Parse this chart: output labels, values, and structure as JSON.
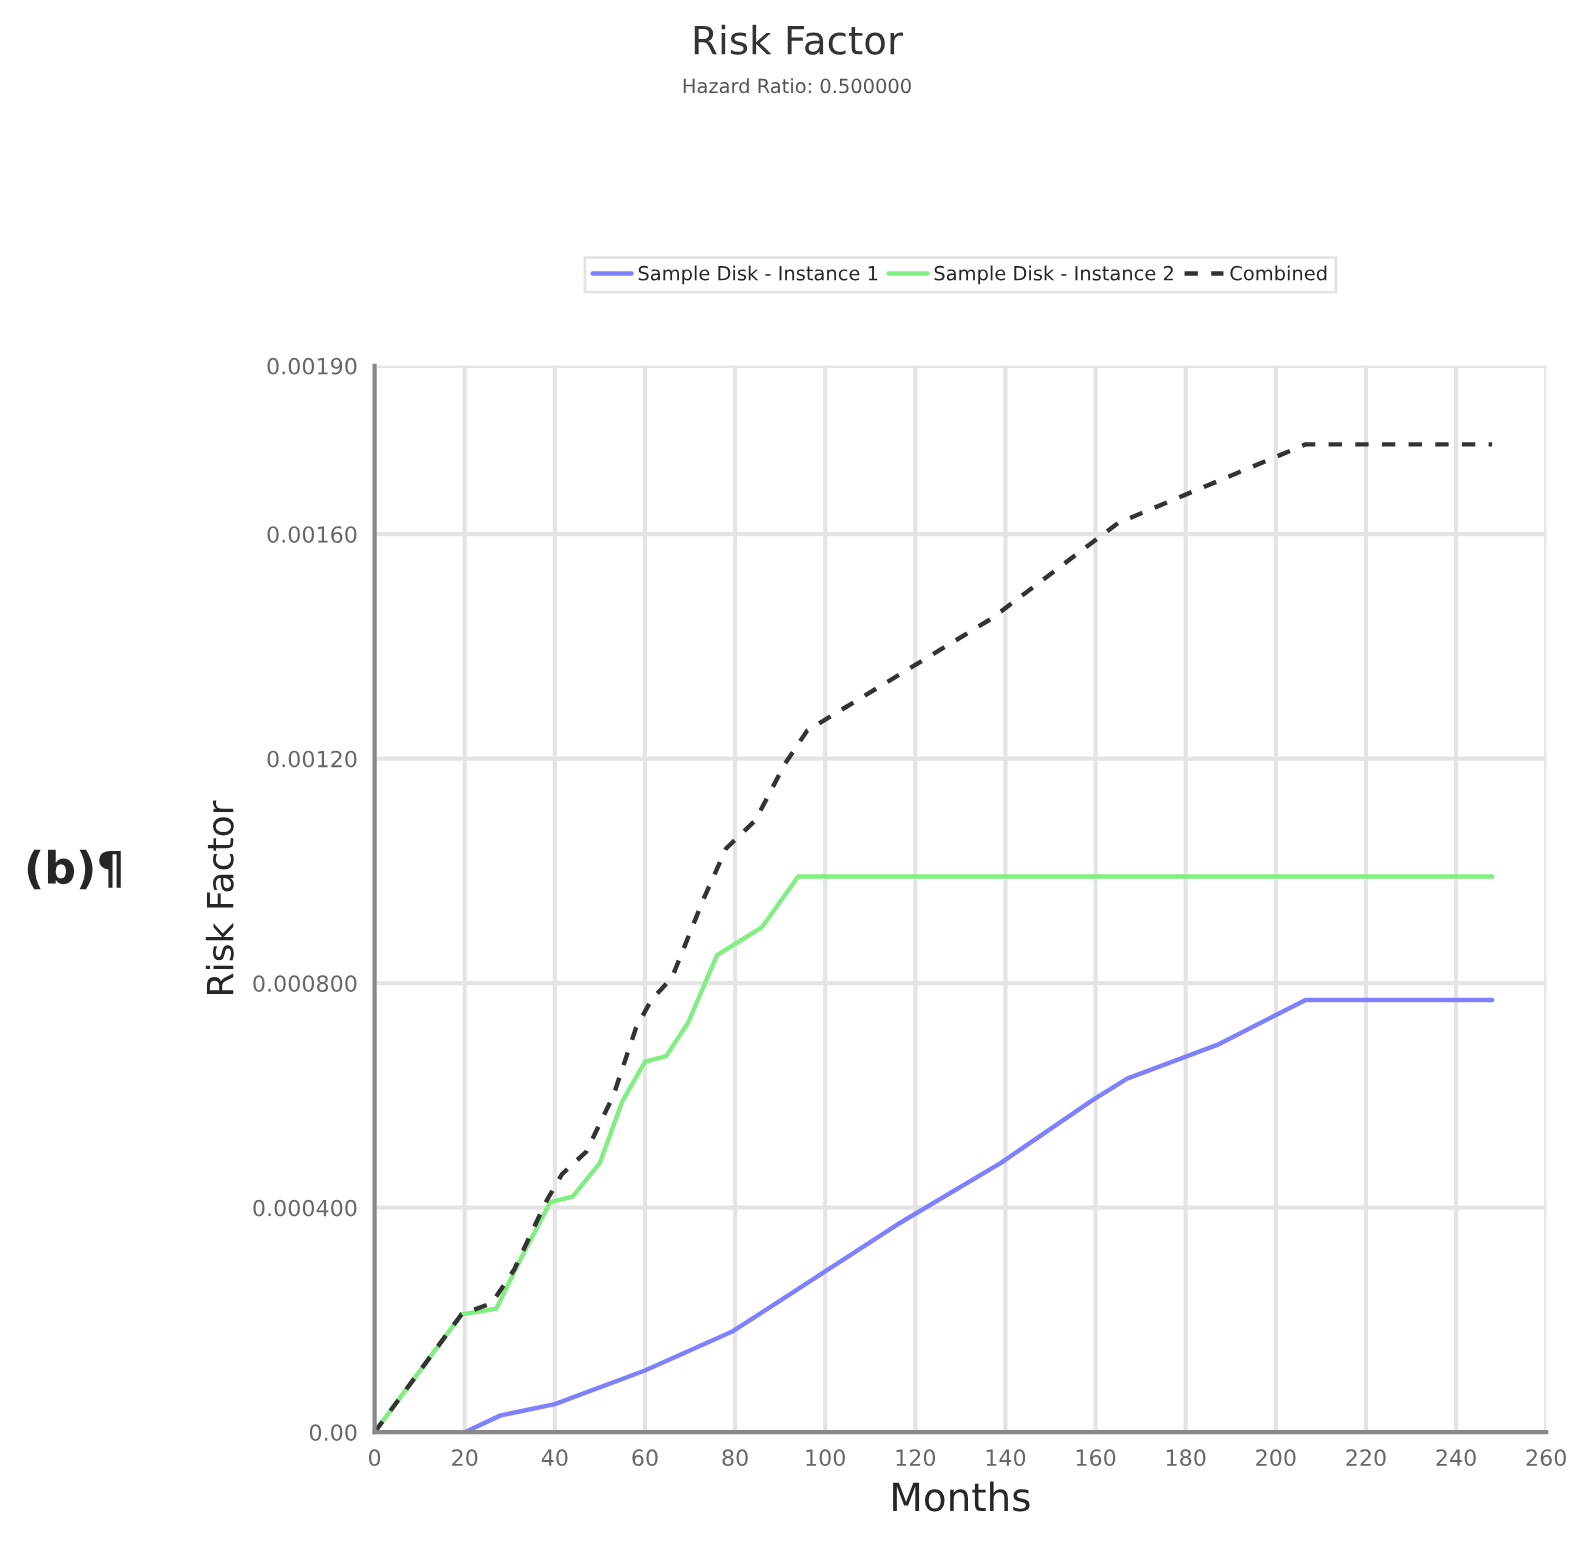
{
  "chart_data": {
    "type": "line",
    "title": "Risk Factor",
    "subtitle": "Hazard Ratio: 0.500000",
    "xlabel": "Months",
    "ylabel": "Risk Factor",
    "annotations": [
      "(b)¶"
    ],
    "xlim": [
      0,
      260
    ],
    "xticks": [
      0,
      20,
      40,
      60,
      80,
      100,
      120,
      140,
      160,
      180,
      200,
      220,
      240,
      260
    ],
    "ylim": [
      0,
      0.0019
    ],
    "yticks": [
      {
        "value": 0,
        "label": "0.00"
      },
      {
        "value": 0.0004,
        "label": "0.000400"
      },
      {
        "value": 0.0008,
        "label": "0.000800"
      },
      {
        "value": 0.0012,
        "label": "0.00120"
      },
      {
        "value": 0.0016,
        "label": "0.00160"
      },
      {
        "value": 0.0019,
        "label": "0.00190"
      }
    ],
    "grid": true,
    "legend": "top",
    "marker": "none",
    "series": [
      {
        "name": "Sample Disk - Instance 1",
        "color": "#8080ff",
        "line_style": "solid",
        "x": [
          0,
          20,
          28,
          40,
          60,
          79.5,
          93,
          116,
          139,
          159,
          167,
          187,
          206.6,
          248
        ],
        "values": [
          0,
          0,
          3e-05,
          5e-05,
          0.00011,
          0.00018,
          0.00025,
          0.00037,
          0.00048,
          0.00059,
          0.00063,
          0.00069,
          0.00077,
          0.00077
        ]
      },
      {
        "name": "Sample Disk - Instance 2",
        "color": "#80ee80",
        "line_style": "solid",
        "x": [
          0,
          19.3,
          27,
          32.5,
          39,
          44,
          50,
          55,
          60,
          64.7,
          69.6,
          76,
          80,
          86,
          94,
          248
        ],
        "values": [
          0,
          0.00021,
          0.00022,
          0.00031,
          0.00041,
          0.00042,
          0.00048,
          0.00059,
          0.00066,
          0.00067,
          0.00073,
          0.00085,
          0.00087,
          0.0009,
          0.00099,
          0.00099
        ]
      },
      {
        "name": "Combined",
        "color": "#333333",
        "line_style": "dashed",
        "x": [
          0,
          19.3,
          26,
          31,
          38,
          41.6,
          47,
          53,
          58,
          61.4,
          66,
          73,
          78,
          84.5,
          91,
          96,
          137,
          165,
          206.6,
          248
        ],
        "values": [
          0,
          0.00021,
          0.00023,
          0.00029,
          0.00041,
          0.00046,
          0.0005,
          0.0006,
          0.00072,
          0.00077,
          0.00081,
          0.00095,
          0.00104,
          0.00109,
          0.00119,
          0.00125,
          0.00145,
          0.00162,
          0.00176,
          0.00176
        ]
      }
    ]
  }
}
